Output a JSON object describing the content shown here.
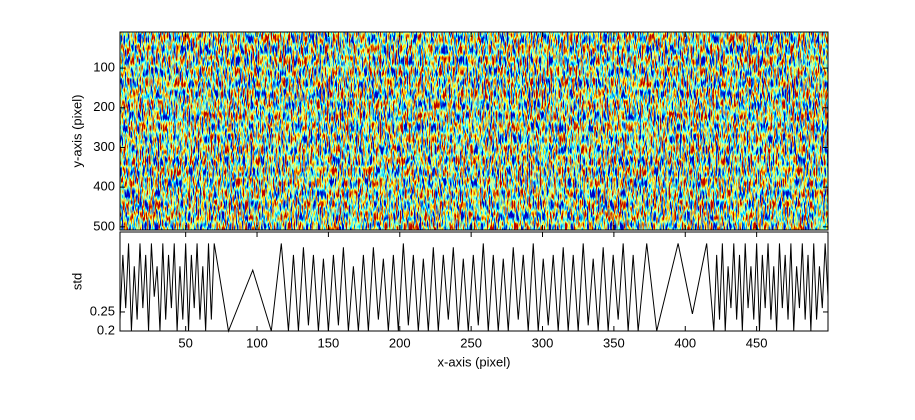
{
  "chart_data": [
    {
      "type": "image",
      "ylabel": "y-axis (pixel)",
      "xlim": [
        4,
        500
      ],
      "xticks": [
        50,
        100,
        150,
        200,
        250,
        300,
        350,
        400,
        450
      ],
      "ylim": [
        9,
        508
      ],
      "yticks": [
        100,
        200,
        300,
        400,
        500
      ],
      "y_reversed": true,
      "colormap": [
        "#00008f",
        "#0040ff",
        "#00ffff",
        "#80ff80",
        "#ffff00",
        "#ff4000",
        "#800000"
      ]
    },
    {
      "type": "line",
      "xlabel": "x-axis (pixel)",
      "ylabel": "std",
      "color": "#000000",
      "xlim": [
        4,
        500
      ],
      "xticks": [
        50,
        100,
        150,
        200,
        250,
        300,
        350,
        400,
        450
      ],
      "ylim": [
        0.2,
        0.46
      ],
      "yticks": [
        0.2,
        0.25
      ],
      "x": [
        4,
        6,
        8,
        10,
        12,
        14,
        16,
        18,
        20,
        22,
        24,
        26,
        28,
        30,
        32,
        34,
        36,
        38,
        40,
        42,
        44,
        46,
        48,
        50,
        52,
        54,
        56,
        58,
        60,
        62,
        64,
        66,
        68,
        70,
        80,
        97,
        110,
        117,
        122,
        125.5,
        129,
        132.5,
        136,
        139.5,
        143,
        146.5,
        150,
        153.5,
        157,
        160.5,
        164,
        167.5,
        171,
        174.5,
        178,
        181.5,
        185,
        188.5,
        192,
        195.5,
        199,
        202.5,
        206,
        209.5,
        213,
        216.5,
        220,
        223.5,
        227,
        230.5,
        234,
        237.5,
        241,
        244.5,
        248,
        251.5,
        255,
        258.5,
        262,
        265.5,
        269,
        272.5,
        276,
        279.5,
        283,
        286.5,
        290,
        293.5,
        297,
        300.5,
        304,
        307.5,
        311,
        314.5,
        318,
        321.5,
        325,
        328.5,
        332,
        335.5,
        339,
        342.5,
        346,
        349.5,
        353,
        356.5,
        360,
        363.5,
        367,
        373,
        380,
        395,
        405,
        415,
        420,
        422,
        424,
        426,
        428,
        430,
        432,
        434,
        436,
        438,
        440,
        442,
        444,
        446,
        448,
        450,
        452,
        454,
        456,
        458,
        460,
        462,
        464,
        466,
        468,
        470,
        472,
        474,
        476,
        478,
        480,
        482,
        484,
        486,
        488,
        490,
        492,
        494,
        496,
        498,
        500
      ],
      "values": [
        0.23,
        0.4,
        0.26,
        0.43,
        0.2,
        0.37,
        0.23,
        0.43,
        0.26,
        0.4,
        0.2,
        0.43,
        0.29,
        0.37,
        0.2,
        0.43,
        0.23,
        0.4,
        0.26,
        0.43,
        0.2,
        0.37,
        0.23,
        0.43,
        0.2,
        0.4,
        0.26,
        0.43,
        0.23,
        0.37,
        0.2,
        0.43,
        0.23,
        0.43,
        0.2,
        0.36,
        0.2,
        0.43,
        0.2,
        0.4,
        0.2,
        0.42,
        0.215,
        0.4,
        0.2,
        0.39,
        0.2,
        0.4,
        0.215,
        0.42,
        0.2,
        0.37,
        0.2,
        0.4,
        0.2,
        0.42,
        0.23,
        0.39,
        0.2,
        0.4,
        0.2,
        0.43,
        0.215,
        0.4,
        0.2,
        0.39,
        0.2,
        0.42,
        0.2,
        0.4,
        0.23,
        0.42,
        0.2,
        0.39,
        0.2,
        0.4,
        0.215,
        0.43,
        0.2,
        0.4,
        0.2,
        0.39,
        0.2,
        0.42,
        0.23,
        0.4,
        0.2,
        0.43,
        0.2,
        0.39,
        0.215,
        0.4,
        0.2,
        0.42,
        0.2,
        0.4,
        0.2,
        0.43,
        0.215,
        0.39,
        0.2,
        0.42,
        0.2,
        0.4,
        0.23,
        0.43,
        0.2,
        0.4,
        0.2,
        0.43,
        0.2,
        0.43,
        0.245,
        0.43,
        0.2,
        0.4,
        0.23,
        0.43,
        0.2,
        0.37,
        0.26,
        0.43,
        0.23,
        0.4,
        0.2,
        0.43,
        0.26,
        0.37,
        0.23,
        0.43,
        0.2,
        0.4,
        0.26,
        0.43,
        0.23,
        0.37,
        0.2,
        0.43,
        0.26,
        0.4,
        0.23,
        0.43,
        0.2,
        0.37,
        0.26,
        0.43,
        0.23,
        0.4,
        0.2,
        0.43,
        0.23,
        0.37,
        0.26,
        0.43,
        0.29
      ]
    }
  ]
}
